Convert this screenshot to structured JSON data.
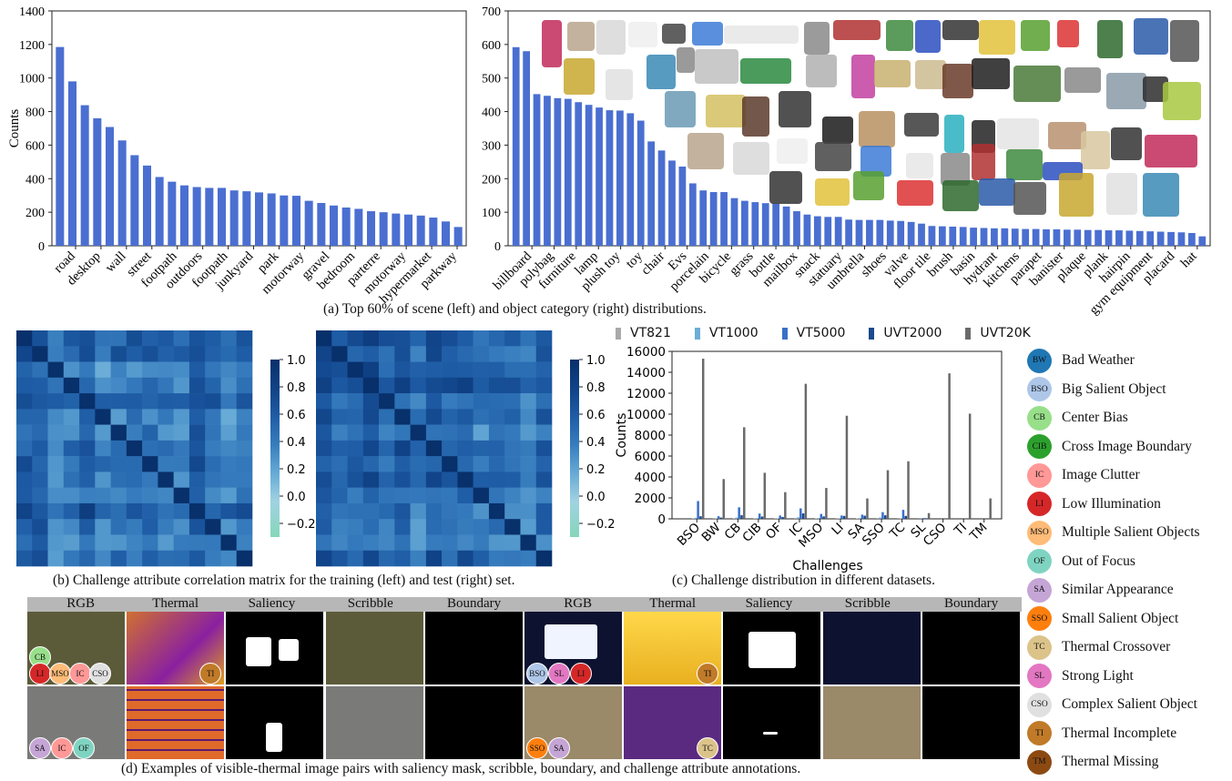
{
  "chart_data": [
    {
      "type": "bar",
      "id": "scene",
      "ylabel": "Counts",
      "ylim": [
        0,
        1400
      ],
      "yticks": [
        0,
        200,
        400,
        600,
        800,
        1000,
        1200,
        1400
      ],
      "color": "#4a6fd1",
      "tick_labels": [
        "road",
        "desktop",
        "wall",
        "street",
        "footpath",
        "outdoors",
        "footpath",
        "junkyard",
        "park",
        "motorway",
        "gravel",
        "bedroom",
        "parterre",
        "motorway",
        "hypermarket",
        "parkway"
      ],
      "values": [
        1185,
        980,
        838,
        760,
        708,
        628,
        540,
        478,
        410,
        382,
        360,
        350,
        345,
        345,
        330,
        325,
        318,
        312,
        300,
        298,
        268,
        255,
        240,
        228,
        220,
        206,
        200,
        192,
        186,
        180,
        168,
        145,
        112
      ]
    },
    {
      "type": "bar",
      "id": "object",
      "ylim": [
        0,
        700
      ],
      "yticks": [
        0,
        100,
        200,
        300,
        400,
        500,
        600,
        700
      ],
      "color": "#4a6fd1",
      "tick_labels": [
        "billboard",
        "polybag",
        "furniture",
        "lamp",
        "plush toy",
        "toy",
        "chair",
        "Evs",
        "porcelain",
        "bicycle",
        "grass",
        "bottle",
        "mailbox",
        "snack",
        "statuary",
        "umbrella",
        "shoes",
        "valve",
        "floor tile",
        "brush",
        "basin",
        "hydrant",
        "kitchens",
        "parapet",
        "banister",
        "plaque",
        "plank",
        "hairpin",
        "gym equipment",
        "placard",
        "hat"
      ],
      "values": [
        592,
        580,
        452,
        447,
        440,
        438,
        428,
        420,
        412,
        404,
        403,
        395,
        373,
        311,
        284,
        254,
        236,
        186,
        165,
        160,
        160,
        142,
        134,
        130,
        127,
        126,
        117,
        103,
        93,
        88,
        86,
        86,
        78,
        77,
        77,
        77,
        75,
        74,
        71,
        66,
        59,
        58,
        57,
        56,
        54,
        53,
        52,
        52,
        51,
        50,
        50,
        49,
        49,
        48,
        48,
        47,
        47,
        46,
        46,
        45,
        44,
        43,
        42,
        41,
        40,
        38,
        28
      ]
    },
    {
      "type": "bar",
      "id": "challenges",
      "xlabel": "Challenges",
      "ylabel": "Counts",
      "ylim": [
        0,
        16000
      ],
      "yticks": [
        0,
        2000,
        4000,
        6000,
        8000,
        10000,
        12000,
        14000,
        16000
      ],
      "categories": [
        "BSO",
        "BW",
        "CB",
        "CIB",
        "OF",
        "IC",
        "MSO",
        "LI",
        "SA",
        "SSO",
        "TC",
        "SL",
        "CSO",
        "TI",
        "TM"
      ],
      "series": [
        {
          "name": "VT821",
          "color": "#a9a9a9",
          "values": [
            50,
            20,
            60,
            40,
            30,
            80,
            40,
            30,
            40,
            80,
            20,
            10,
            0,
            0,
            0
          ]
        },
        {
          "name": "VT1000",
          "color": "#6aaed6",
          "values": [
            100,
            40,
            120,
            60,
            40,
            150,
            80,
            50,
            70,
            130,
            40,
            20,
            0,
            0,
            0
          ]
        },
        {
          "name": "VT5000",
          "color": "#3a6fc9",
          "values": [
            1700,
            250,
            1100,
            500,
            320,
            1000,
            470,
            320,
            400,
            640,
            860,
            80,
            0,
            0,
            0
          ]
        },
        {
          "name": "UVT2000",
          "color": "#1b4a8c",
          "values": [
            250,
            120,
            350,
            220,
            180,
            520,
            230,
            280,
            300,
            340,
            280,
            60,
            0,
            0,
            0
          ]
        },
        {
          "name": "UVT20K",
          "color": "#6a6a6a",
          "values": [
            15300,
            3800,
            8750,
            4400,
            2550,
            12900,
            2950,
            9850,
            1950,
            4650,
            5500,
            550,
            13900,
            10050,
            1950
          ]
        }
      ]
    },
    {
      "type": "heatmap",
      "id": "corr_train",
      "colorbar_ticks": [
        "1.0",
        "0.8",
        "0.6",
        "0.4",
        "0.2",
        "0.0",
        "−0.2"
      ]
    },
    {
      "type": "heatmap",
      "id": "corr_test",
      "colorbar_ticks": [
        "1.0",
        "0.8",
        "0.6",
        "0.4",
        "0.2",
        "0.0",
        "−0.2"
      ]
    }
  ],
  "captions": {
    "a": "(a) Top 60% of scene (left) and object category (right) distributions.",
    "b": "(b) Challenge attribute correlation matrix for the training (left) and test (right) set.",
    "c": "(c) Challenge distribution in different datasets.",
    "d": "(d) Examples of visible-thermal image pairs with saliency mask, scribble, boundary, and challenge attribute annotations."
  },
  "attribute_legend": [
    {
      "abbr": "BW",
      "label": "Bad Weather",
      "color": "#1f77b4"
    },
    {
      "abbr": "BSO",
      "label": "Big Salient Object",
      "color": "#aec7e8"
    },
    {
      "abbr": "CB",
      "label": "Center Bias",
      "color": "#98df8a"
    },
    {
      "abbr": "CIB",
      "label": "Cross Image Boundary",
      "color": "#2ca02c"
    },
    {
      "abbr": "IC",
      "label": "Image Clutter",
      "color": "#ff9896"
    },
    {
      "abbr": "LI",
      "label": "Low Illumination",
      "color": "#d62728"
    },
    {
      "abbr": "MSO",
      "label": "Multiple Salient Objects",
      "color": "#ffbb78"
    },
    {
      "abbr": "OF",
      "label": "Out of Focus",
      "color": "#7fd4c1"
    },
    {
      "abbr": "SA",
      "label": "Similar Appearance",
      "color": "#c5a5d5"
    },
    {
      "abbr": "SSO",
      "label": "Small Salient Object",
      "color": "#ff7f0e"
    },
    {
      "abbr": "TC",
      "label": "Thermal Crossover",
      "color": "#dbc38a"
    },
    {
      "abbr": "SL",
      "label": "Strong Light",
      "color": "#e377c2"
    },
    {
      "abbr": "CSO",
      "label": "Complex Salient Object",
      "color": "#e0e0e0"
    },
    {
      "abbr": "TI",
      "label": "Thermal Incomplete",
      "color": "#c07a28"
    },
    {
      "abbr": "TM",
      "label": "Thermal Missing",
      "color": "#8c4a12"
    }
  ],
  "example_headers": [
    "RGB",
    "Thermal",
    "Saliency",
    "Scribble",
    "Boundary",
    "RGB",
    "Thermal",
    "Saliency",
    "Scribble",
    "Boundary"
  ],
  "example_tags": [
    {
      "row": 0,
      "col": 0,
      "tags": [
        [
          "CB",
          "#98df8a"
        ],
        [
          "LI",
          "#d62728"
        ],
        [
          "MSO",
          "#ffbb78"
        ],
        [
          "IC",
          "#ff9896"
        ],
        [
          "CSO",
          "#e0e0e0"
        ]
      ]
    },
    {
      "row": 0,
      "col": 1,
      "tags": [
        [
          "TI",
          "#c07a28"
        ]
      ]
    },
    {
      "row": 0,
      "col": 5,
      "tags": [
        [
          "BSO",
          "#aec7e8"
        ],
        [
          "SL",
          "#e377c2"
        ],
        [
          "LI",
          "#d62728"
        ]
      ]
    },
    {
      "row": 0,
      "col": 6,
      "tags": [
        [
          "TI",
          "#c07a28"
        ]
      ]
    },
    {
      "row": 1,
      "col": 0,
      "tags": [
        [
          "SA",
          "#c5a5d5"
        ],
        [
          "IC",
          "#ff9896"
        ],
        [
          "OF",
          "#7fd4c1"
        ]
      ]
    },
    {
      "row": 1,
      "col": 5,
      "tags": [
        [
          "SSO",
          "#ff7f0e"
        ],
        [
          "SA",
          "#c5a5d5"
        ]
      ]
    },
    {
      "row": 1,
      "col": 6,
      "tags": [
        [
          "TC",
          "#dbc38a"
        ]
      ]
    }
  ]
}
